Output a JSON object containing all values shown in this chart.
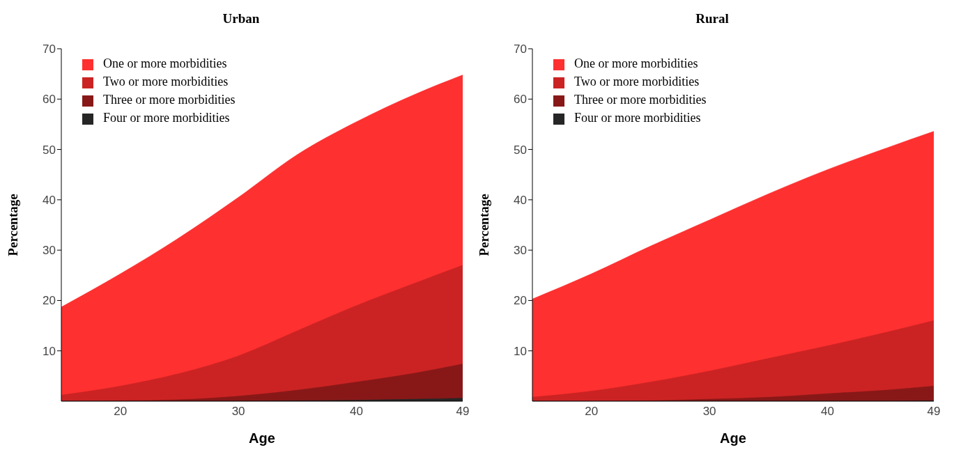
{
  "chart_data": [
    {
      "type": "area",
      "title": "Urban",
      "xlabel": "Age",
      "ylabel": "Percentage",
      "x": [
        15,
        20,
        25,
        30,
        35,
        40,
        45,
        49
      ],
      "xlim": [
        15,
        49
      ],
      "xticks": [
        20,
        30,
        40,
        49
      ],
      "ylim": [
        0,
        70
      ],
      "yticks": [
        10,
        20,
        30,
        40,
        50,
        60,
        70
      ],
      "grid": false,
      "legend": "top left",
      "series": [
        {
          "name": "One or more morbidities",
          "color": "#fe3030",
          "values": [
            18.7,
            25.3,
            32.5,
            40.5,
            49,
            55.5,
            61,
            64.8
          ]
        },
        {
          "name": "Two or more morbidities",
          "color": "#cb2323",
          "values": [
            1.2,
            3,
            5.5,
            9,
            14,
            19,
            23.5,
            27
          ]
        },
        {
          "name": "Three or more morbidities",
          "color": "#881818",
          "values": [
            0,
            0.1,
            0.3,
            1,
            2.2,
            3.8,
            5.6,
            7.4
          ]
        },
        {
          "name": "Four or more morbidities",
          "color": "#262626",
          "values": [
            0,
            0,
            0,
            0,
            0.1,
            0.2,
            0.4,
            0.6
          ]
        }
      ]
    },
    {
      "type": "area",
      "title": "Rural",
      "xlabel": "Age",
      "ylabel": "Percentage",
      "x": [
        15,
        20,
        25,
        30,
        35,
        40,
        45,
        49
      ],
      "xlim": [
        15,
        49
      ],
      "xticks": [
        20,
        30,
        40,
        49
      ],
      "ylim": [
        0,
        70
      ],
      "yticks": [
        10,
        20,
        30,
        40,
        50,
        60,
        70
      ],
      "grid": false,
      "legend": "top left",
      "series": [
        {
          "name": "One or more morbidities",
          "color": "#fe3030",
          "values": [
            20.3,
            25.3,
            30.8,
            36,
            41.2,
            46,
            50.3,
            53.6
          ]
        },
        {
          "name": "Two or more morbidities",
          "color": "#cb2323",
          "values": [
            0.8,
            2,
            3.8,
            6,
            8.5,
            11,
            13.7,
            16
          ]
        },
        {
          "name": "Three or more morbidities",
          "color": "#881818",
          "values": [
            0,
            0,
            0.1,
            0.4,
            0.8,
            1.5,
            2.2,
            3
          ]
        },
        {
          "name": "Four or more morbidities",
          "color": "#262626",
          "values": [
            0,
            0,
            0,
            0,
            0,
            0,
            0,
            0.1
          ]
        }
      ]
    }
  ]
}
